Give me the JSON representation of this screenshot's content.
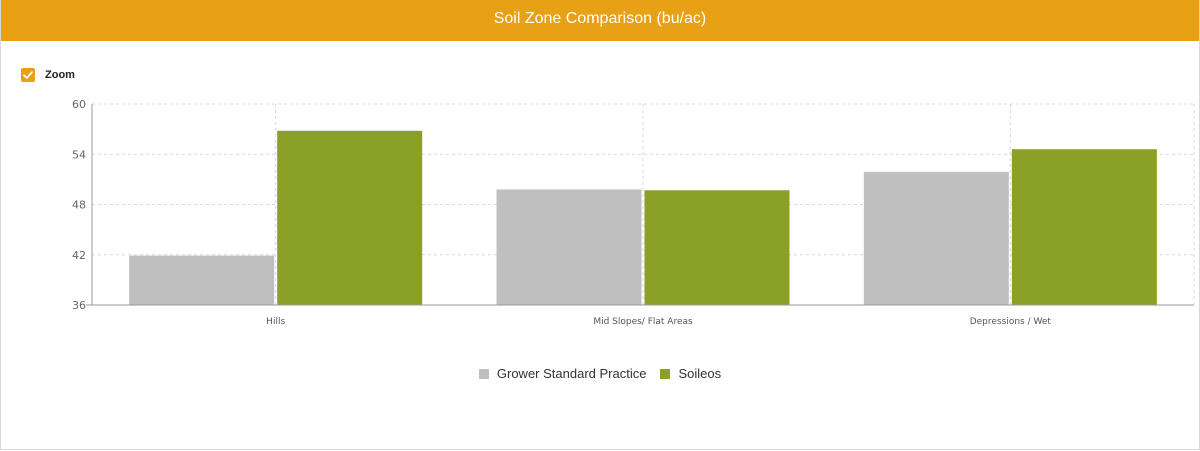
{
  "header": {
    "title": "Soil Zone Comparison (bu/ac)",
    "color": "#e8a015"
  },
  "zoom": {
    "label": "Zoom",
    "checked": true,
    "icon": "checkmark-icon"
  },
  "chart_data": {
    "type": "bar",
    "title": "Soil Zone Comparison (bu/ac)",
    "xlabel": "",
    "ylabel": "",
    "categories": [
      "Hills",
      "Mid Slopes/ Flat Areas",
      "Depressions / Wet"
    ],
    "series": [
      {
        "name": "Grower Standard Practice",
        "color": "#bfbfbf",
        "values": [
          41.9,
          49.8,
          51.9
        ]
      },
      {
        "name": "Soileos",
        "color": "#8aa026",
        "values": [
          56.8,
          49.7,
          54.6
        ]
      }
    ],
    "ylim": [
      36,
      60
    ],
    "yticks": [
      36,
      42,
      48,
      54,
      60
    ],
    "grid": true,
    "legend_position": "bottom"
  }
}
